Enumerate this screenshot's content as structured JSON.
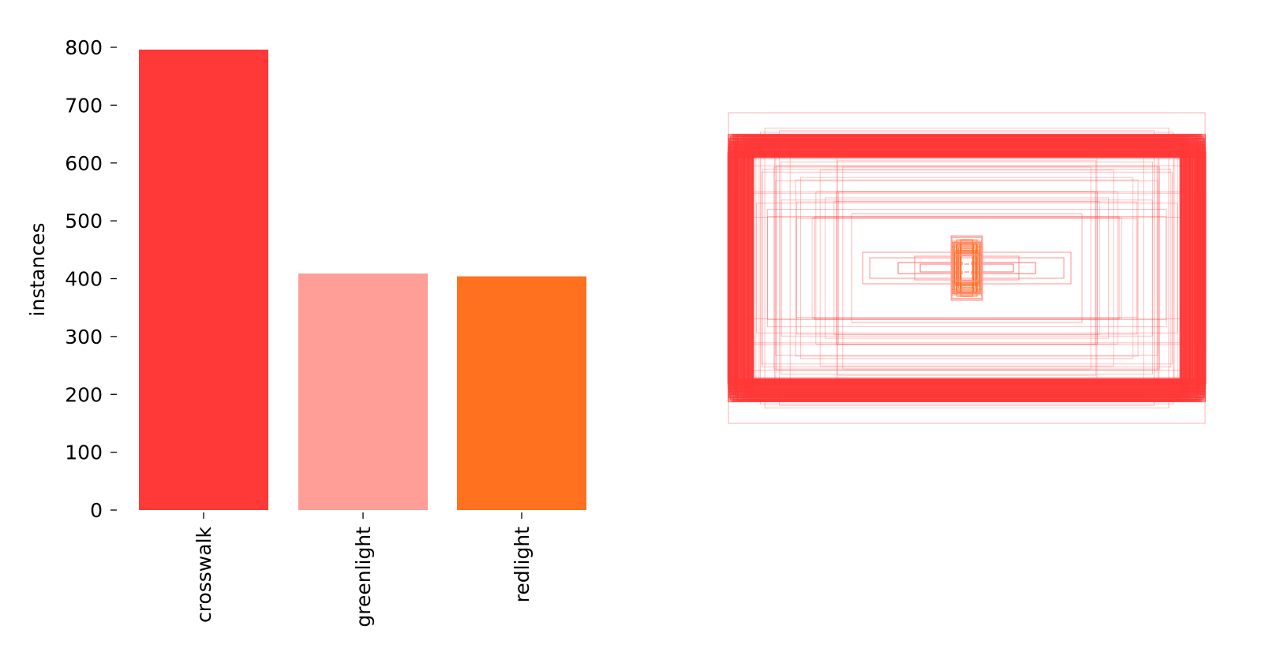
{
  "chart_data": [
    {
      "type": "bar",
      "categories": [
        "crosswalk",
        "greenlight",
        "redlight"
      ],
      "values": [
        796,
        409,
        404
      ],
      "colors": [
        "#ff3838",
        "#ff9d97",
        "#ff701f"
      ],
      "title": "",
      "xlabel": "",
      "ylabel": "instances",
      "ylim": [
        0,
        800
      ],
      "yticks": [
        0,
        100,
        200,
        300,
        400,
        500,
        600,
        700,
        800
      ],
      "ytick_labels": [
        "0",
        "100",
        "200",
        "300",
        "400",
        "500",
        "600",
        "700",
        "800"
      ],
      "grid": false
    },
    {
      "type": "box-overlay",
      "description_shown": "overlaid bounding boxes centered at image center",
      "axes_visible": false,
      "series": [
        {
          "color": "#ff3838"
        },
        {
          "color": "#ff9d97"
        },
        {
          "color": "#ff701f"
        }
      ]
    }
  ]
}
